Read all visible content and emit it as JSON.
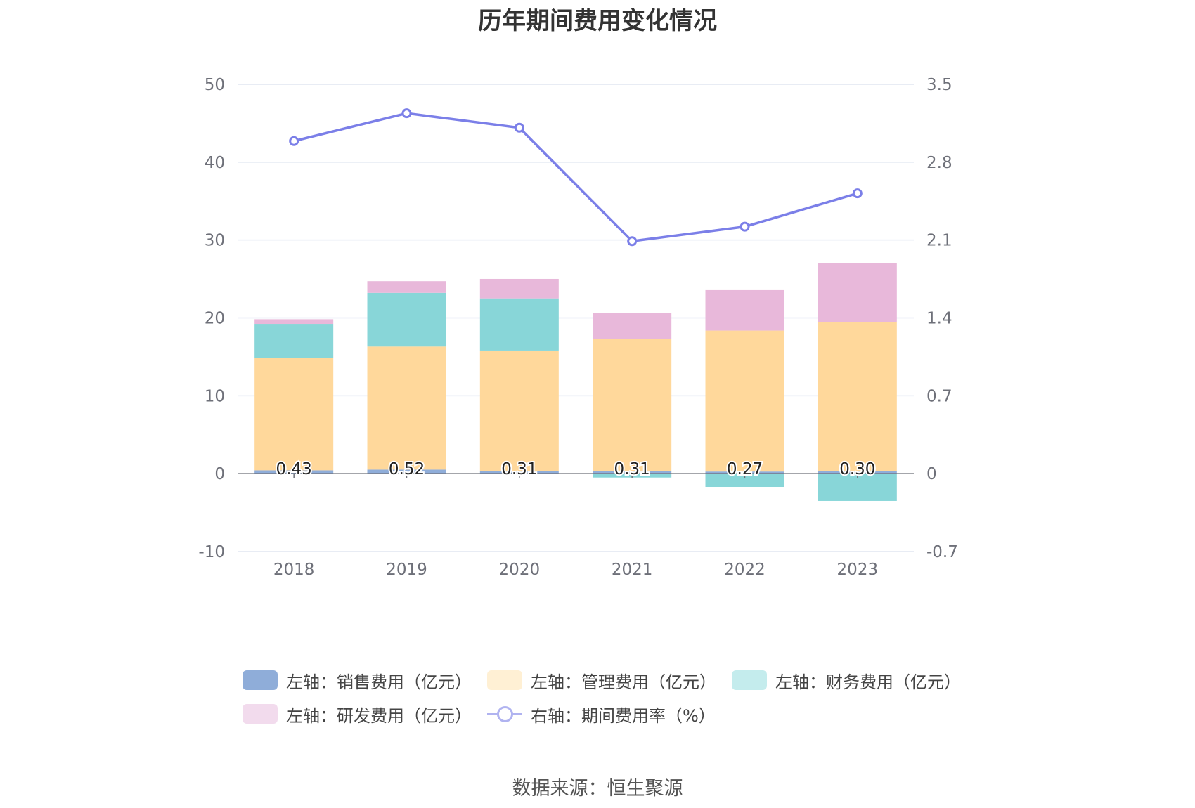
{
  "title": "历年期间费用变化情况",
  "source": "数据来源：恒生聚源",
  "chart_data": {
    "type": "bar",
    "categories": [
      "2018",
      "2019",
      "2020",
      "2021",
      "2022",
      "2023"
    ],
    "stacked": true,
    "series": [
      {
        "name": "左轴：销售费用（亿元）",
        "axis": "left",
        "color": "#8fadd9",
        "values": [
          0.43,
          0.52,
          0.31,
          0.31,
          0.27,
          0.3
        ],
        "labels": [
          "0.43",
          "0.52",
          "0.31",
          "0.31",
          "0.27",
          "0.30"
        ]
      },
      {
        "name": "左轴：管理费用（亿元）",
        "axis": "left",
        "color": "#ffd89b",
        "values": [
          14.4,
          15.8,
          15.5,
          17.0,
          18.1,
          19.2
        ]
      },
      {
        "name": "左轴：财务费用（亿元）",
        "axis": "left",
        "color": "#88d6d8",
        "values": [
          4.4,
          6.9,
          6.7,
          -0.5,
          -1.7,
          -3.5
        ]
      },
      {
        "name": "左轴：研发费用（亿元）",
        "axis": "left",
        "color": "#e8b8da",
        "values": [
          0.6,
          1.5,
          2.5,
          3.3,
          5.2,
          7.5
        ]
      },
      {
        "name": "右轴：期间费用率（%）",
        "axis": "right",
        "type": "line",
        "color": "#7b7fe8",
        "values": [
          2.99,
          3.24,
          3.11,
          2.09,
          2.22,
          2.52
        ]
      }
    ],
    "left_axis": {
      "min": -10,
      "max": 50,
      "ticks": [
        "-10",
        "0",
        "10",
        "20",
        "30",
        "40",
        "50"
      ]
    },
    "right_axis": {
      "min": -0.7,
      "max": 3.5,
      "ticks": [
        "-0.7",
        "0",
        "0.7",
        "1.4",
        "2.1",
        "2.8",
        "3.5"
      ]
    },
    "grid": true,
    "legend_position": "bottom"
  },
  "legend": [
    {
      "label": "左轴：销售费用（亿元）",
      "color": "#8fadd9",
      "kind": "box"
    },
    {
      "label": "左轴：管理费用（亿元）",
      "color": "#fff0d4",
      "kind": "box"
    },
    {
      "label": "左轴：财务费用（亿元）",
      "color": "#c4eced",
      "kind": "box"
    },
    {
      "label": "左轴：研发费用（亿元）",
      "color": "#f2dbed",
      "kind": "box"
    },
    {
      "label": "右轴：期间费用率（%）",
      "color": "#b0b3f0",
      "kind": "line"
    }
  ]
}
